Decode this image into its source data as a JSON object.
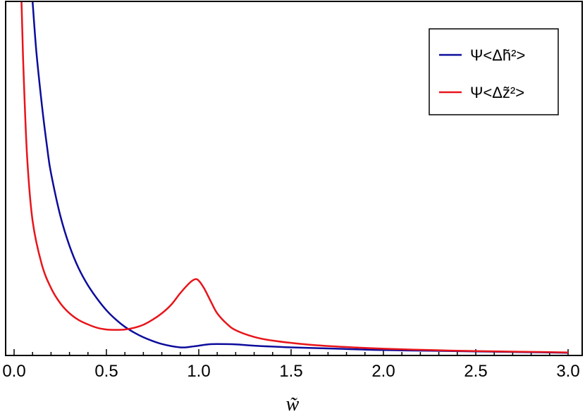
{
  "chart_data": {
    "type": "line",
    "title": "",
    "xlabel": "w̃",
    "ylabel": "",
    "xlim": [
      0.0,
      3.0
    ],
    "ylim": [
      0.0,
      1.05
    ],
    "yticks_visible": false,
    "grid": false,
    "legend_position": "top-right",
    "x_ticks": [
      "0.0",
      "0.5",
      "1.0",
      "1.5",
      "2.0",
      "2.5",
      "3.0"
    ],
    "series": [
      {
        "name": "Ψ<Δh̃²>",
        "color": "#0c0c9c",
        "x": [
          0.1,
          0.12,
          0.15,
          0.18,
          0.2,
          0.25,
          0.3,
          0.35,
          0.4,
          0.45,
          0.5,
          0.55,
          0.6,
          0.65,
          0.7,
          0.75,
          0.8,
          0.85,
          0.9,
          0.93,
          0.96,
          1.0,
          1.05,
          1.1,
          1.2,
          1.3,
          1.5,
          1.75,
          2.0,
          2.25,
          2.5,
          2.75,
          3.0
        ],
        "y": [
          1.05,
          0.905,
          0.745,
          0.612,
          0.54,
          0.415,
          0.325,
          0.258,
          0.208,
          0.168,
          0.134,
          0.107,
          0.085,
          0.068,
          0.054,
          0.043,
          0.034,
          0.028,
          0.024,
          0.024,
          0.026,
          0.029,
          0.033,
          0.034,
          0.033,
          0.029,
          0.024,
          0.02,
          0.016,
          0.014,
          0.012,
          0.01,
          0.008
        ]
      },
      {
        "name": "Ψ<Δz̃²>",
        "color": "#e8141a",
        "x": [
          0.04,
          0.05,
          0.07,
          0.1,
          0.15,
          0.2,
          0.25,
          0.3,
          0.35,
          0.4,
          0.45,
          0.5,
          0.55,
          0.6,
          0.65,
          0.7,
          0.75,
          0.8,
          0.85,
          0.9,
          0.95,
          0.98,
          1.0,
          1.03,
          1.07,
          1.1,
          1.15,
          1.2,
          1.3,
          1.4,
          1.6,
          1.8,
          2.0,
          2.25,
          2.5,
          2.75,
          3.0
        ],
        "y": [
          1.05,
          0.86,
          0.595,
          0.4,
          0.27,
          0.2,
          0.155,
          0.125,
          0.105,
          0.092,
          0.082,
          0.077,
          0.076,
          0.077,
          0.082,
          0.091,
          0.106,
          0.125,
          0.15,
          0.185,
          0.215,
          0.226,
          0.222,
          0.198,
          0.155,
          0.125,
          0.095,
          0.075,
          0.055,
          0.044,
          0.032,
          0.025,
          0.02,
          0.016,
          0.013,
          0.011,
          0.009
        ]
      }
    ]
  }
}
